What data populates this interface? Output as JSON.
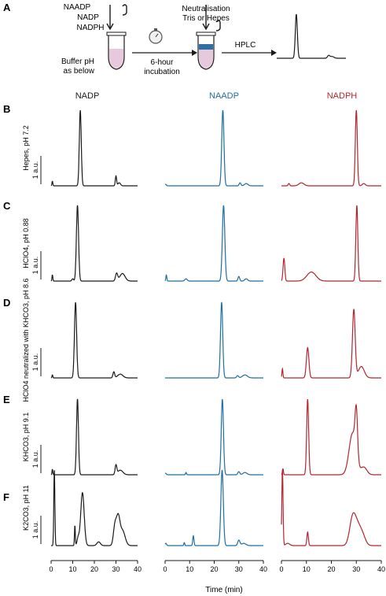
{
  "schematic": {
    "panel_label": "A",
    "inputs": [
      "NAADP",
      "NADP",
      "NADPH"
    ],
    "buffer_text": [
      "Buffer pH",
      "as below"
    ],
    "incubation": "6-hour",
    "incubation2": "incubation",
    "neutral_text": [
      "Neutralisation",
      "Tris or Hepes"
    ],
    "hplc": "HPLC"
  },
  "columns": [
    {
      "title": "NADP",
      "color": "#1a1a1a"
    },
    {
      "title": "NAADP",
      "color": "#1f6fa0"
    },
    {
      "title": "NADPH",
      "color": "#b3262f"
    }
  ],
  "colors": {
    "tube_fill": "#e6c9dd",
    "tube_band": "#2e6fa6",
    "ink": "#1a1a1a"
  },
  "scale_bar": "1 a.u.",
  "x_axis": {
    "label": "Time (min)",
    "ticks": [
      0,
      10,
      20,
      30,
      40
    ],
    "range": [
      0,
      40
    ]
  },
  "chart_data": {
    "type": "line",
    "xlabel": "Time (min)",
    "xlim": [
      0,
      40
    ],
    "rows": [
      {
        "panel": "B",
        "condition": "Hepes, pH 7.2",
        "series": [
          {
            "name": "NADP",
            "peaks": [
              [
                0.6,
                0.06,
                0.2
              ],
              [
                13.5,
                1.0,
                0.45
              ],
              [
                30.0,
                0.13,
                0.3
              ],
              [
                31.5,
                0.04,
                0.6
              ]
            ]
          },
          {
            "name": "NAADP",
            "peaks": [
              [
                0.2,
                0.02,
                0.3
              ],
              [
                23.5,
                1.0,
                0.45
              ],
              [
                30.5,
                0.04,
                0.35
              ],
              [
                33.0,
                0.03,
                0.7
              ]
            ]
          },
          {
            "name": "NADPH",
            "peaks": [
              [
                3.0,
                0.03,
                0.3
              ],
              [
                8.0,
                0.04,
                1.0
              ],
              [
                30.0,
                1.0,
                0.4
              ],
              [
                33.0,
                0.03,
                0.6
              ]
            ]
          }
        ]
      },
      {
        "panel": "C",
        "condition": "HClO4, pH 0.88",
        "series": [
          {
            "name": "NADP",
            "peaks": [
              [
                0.6,
                0.08,
                0.2
              ],
              [
                10.0,
                0.03,
                0.4
              ],
              [
                12.2,
                1.0,
                0.5
              ],
              [
                30.3,
                0.1,
                0.5
              ],
              [
                33.0,
                0.1,
                1.2
              ]
            ]
          },
          {
            "name": "NAADP",
            "peaks": [
              [
                0.5,
                0.08,
                0.2
              ],
              [
                8.5,
                0.03,
                0.5
              ],
              [
                23.8,
                1.0,
                0.5
              ],
              [
                30.0,
                0.06,
                0.35
              ],
              [
                33.0,
                0.03,
                0.6
              ]
            ]
          },
          {
            "name": "NADPH",
            "peaks": [
              [
                1.0,
                0.3,
                0.35
              ],
              [
                12.0,
                0.12,
                1.8
              ],
              [
                30.2,
                1.0,
                0.4
              ]
            ]
          }
        ]
      },
      {
        "panel": "D",
        "condition": "HClO4 neutralized with KHCO3, pH 8.6",
        "series": [
          {
            "name": "NADP",
            "peaks": [
              [
                0.6,
                0.04,
                0.2
              ],
              [
                11.3,
                1.0,
                0.5
              ],
              [
                29.0,
                0.08,
                0.4
              ],
              [
                32.0,
                0.05,
                1.2
              ]
            ]
          },
          {
            "name": "NAADP",
            "peaks": [
              [
                23.0,
                1.0,
                0.45
              ],
              [
                29.5,
                0.03,
                0.4
              ],
              [
                32.5,
                0.04,
                1.0
              ]
            ]
          },
          {
            "name": "NADPH",
            "peaks": [
              [
                0.4,
                0.12,
                0.2
              ],
              [
                10.5,
                0.4,
                0.5
              ],
              [
                29.0,
                0.9,
                0.55
              ],
              [
                32.0,
                0.15,
                1.2
              ]
            ]
          }
        ]
      },
      {
        "panel": "E",
        "condition": "KHCO3, pH 9.1",
        "series": [
          {
            "name": "NADP",
            "peaks": [
              [
                0.6,
                0.07,
                0.2
              ],
              [
                12.2,
                1.0,
                0.45
              ],
              [
                30.0,
                0.12,
                0.4
              ],
              [
                32.0,
                0.06,
                1.2
              ]
            ]
          },
          {
            "name": "NAADP",
            "peaks": [
              [
                0.2,
                0.02,
                0.3
              ],
              [
                8.5,
                0.03,
                0.2
              ],
              [
                23.3,
                1.0,
                0.45
              ],
              [
                30.0,
                0.04,
                0.4
              ],
              [
                32.5,
                0.03,
                0.8
              ]
            ]
          },
          {
            "name": "NADPH",
            "peaks": [
              [
                0.6,
                0.08,
                0.2
              ],
              [
                10.5,
                1.0,
                0.4
              ],
              [
                28.5,
                0.55,
                1.4
              ],
              [
                30.0,
                0.6,
                0.5
              ],
              [
                33.0,
                0.1,
                1.2
              ]
            ]
          }
        ]
      },
      {
        "panel": "F",
        "condition": "K2CO3, pH 11",
        "series": [
          {
            "name": "NADP",
            "peaks": [
              [
                1.5,
                1.0,
                0.25
              ],
              [
                11.0,
                0.26,
                0.2
              ],
              [
                12.5,
                0.1,
                0.5
              ],
              [
                14.5,
                0.7,
                0.8
              ],
              [
                22.0,
                0.05,
                0.8
              ],
              [
                29.5,
                0.25,
                0.7
              ],
              [
                31.0,
                0.35,
                0.8
              ],
              [
                33.0,
                0.2,
                1.2
              ]
            ]
          },
          {
            "name": "NAADP",
            "peaks": [
              [
                0.3,
                0.03,
                0.3
              ],
              [
                7.8,
                0.04,
                0.2
              ],
              [
                11.5,
                0.13,
                0.25
              ],
              [
                23.2,
                1.0,
                0.5
              ],
              [
                30.0,
                0.07,
                0.45
              ],
              [
                32.0,
                0.03,
                0.9
              ]
            ]
          },
          {
            "name": "NADPH",
            "peaks": [
              [
                0.4,
                1.0,
                0.25
              ],
              [
                2.5,
                0.03,
                0.8
              ],
              [
                10.5,
                0.18,
                0.3
              ],
              [
                28.5,
                0.35,
                1.2
              ],
              [
                30.5,
                0.22,
                1.3
              ],
              [
                32.5,
                0.12,
                1.2
              ]
            ]
          }
        ]
      }
    ]
  }
}
